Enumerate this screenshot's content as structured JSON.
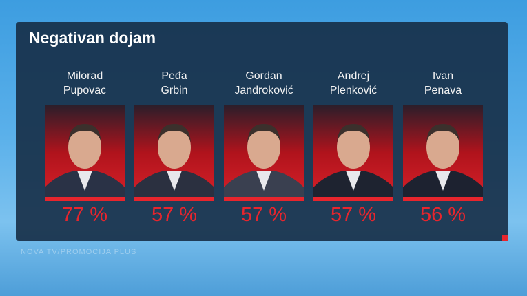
{
  "title": "Negativan dojam",
  "candidates": [
    {
      "first_name": "Milorad",
      "last_name": "Pupovac",
      "result": "77 %"
    },
    {
      "first_name": "Peđa",
      "last_name": "Grbin",
      "result": "57 %"
    },
    {
      "first_name": "Gordan",
      "last_name": "Jandroković",
      "result": "57 %"
    },
    {
      "first_name": "Andrej",
      "last_name": "Plenković",
      "result": "57 %"
    },
    {
      "first_name": "Ivan",
      "last_name": "Penava",
      "result": "56 %"
    }
  ],
  "footer": "NOVA TV/PROMOCIJA PLUS"
}
